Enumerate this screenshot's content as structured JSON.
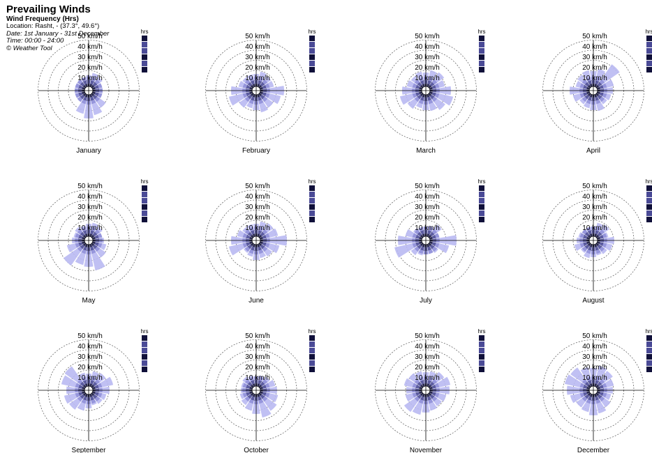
{
  "header": {
    "title": "Prevailing Winds",
    "subtitle": "Wind Frequency (Hrs)",
    "location": "Location: Rasht, - (37.3°, 49.6°)",
    "date": "Date: 1st January - 31st December",
    "time": "Time: 00:00 - 24:00",
    "credit": "© Weather Tool"
  },
  "colors": {
    "light": "#b9b9f2",
    "medium": "#8b8bd8",
    "dark": "#4a4a96",
    "darkest": "#10103a",
    "ring": "#555555",
    "axis": "#000000"
  },
  "chart_data": {
    "type": "polar-bar",
    "speed_rings": [
      "10 km/h",
      "20 km/h",
      "30 km/h",
      "40 km/h",
      "50 km/h"
    ],
    "legend_header": "hrs",
    "months": [
      {
        "name": "January",
        "reach": [
          22,
          26,
          24,
          18,
          12,
          16,
          30,
          36,
          40,
          34,
          20,
          14,
          12,
          14,
          18,
          20
        ]
      },
      {
        "name": "February",
        "reach": [
          24,
          28,
          26,
          26,
          40,
          36,
          30,
          32,
          28,
          26,
          30,
          40,
          36,
          26,
          24,
          24
        ]
      },
      {
        "name": "March",
        "reach": [
          26,
          30,
          32,
          28,
          36,
          40,
          34,
          30,
          28,
          26,
          32,
          38,
          34,
          28,
          26,
          28
        ]
      },
      {
        "name": "April",
        "reach": [
          28,
          32,
          46,
          30,
          28,
          26,
          24,
          30,
          28,
          26,
          24,
          30,
          34,
          26,
          28,
          30
        ]
      },
      {
        "name": "May",
        "reach": [
          24,
          26,
          24,
          20,
          22,
          26,
          30,
          44,
          38,
          36,
          44,
          32,
          24,
          22,
          24,
          22
        ]
      },
      {
        "name": "June",
        "reach": [
          24,
          28,
          30,
          32,
          44,
          34,
          28,
          26,
          28,
          24,
          22,
          40,
          36,
          28,
          24,
          24
        ]
      },
      {
        "name": "July",
        "reach": [
          18,
          22,
          28,
          20,
          44,
          34,
          22,
          20,
          18,
          22,
          26,
          46,
          40,
          30,
          22,
          20
        ]
      },
      {
        "name": "August",
        "reach": [
          20,
          26,
          28,
          22,
          30,
          28,
          24,
          22,
          24,
          26,
          22,
          28,
          24,
          22,
          20,
          20
        ]
      },
      {
        "name": "September",
        "reach": [
          24,
          28,
          30,
          36,
          30,
          26,
          24,
          22,
          26,
          30,
          34,
          36,
          32,
          40,
          42,
          26
        ]
      },
      {
        "name": "October",
        "reach": [
          20,
          22,
          24,
          28,
          30,
          32,
          36,
          40,
          34,
          30,
          26,
          24,
          22,
          22,
          24,
          22
        ]
      },
      {
        "name": "November",
        "reach": [
          26,
          28,
          32,
          36,
          34,
          30,
          28,
          30,
          32,
          36,
          38,
          30,
          28,
          32,
          30,
          28
        ]
      },
      {
        "name": "December",
        "reach": [
          32,
          36,
          34,
          30,
          28,
          26,
          30,
          34,
          36,
          32,
          30,
          34,
          38,
          42,
          40,
          34
        ]
      }
    ]
  }
}
